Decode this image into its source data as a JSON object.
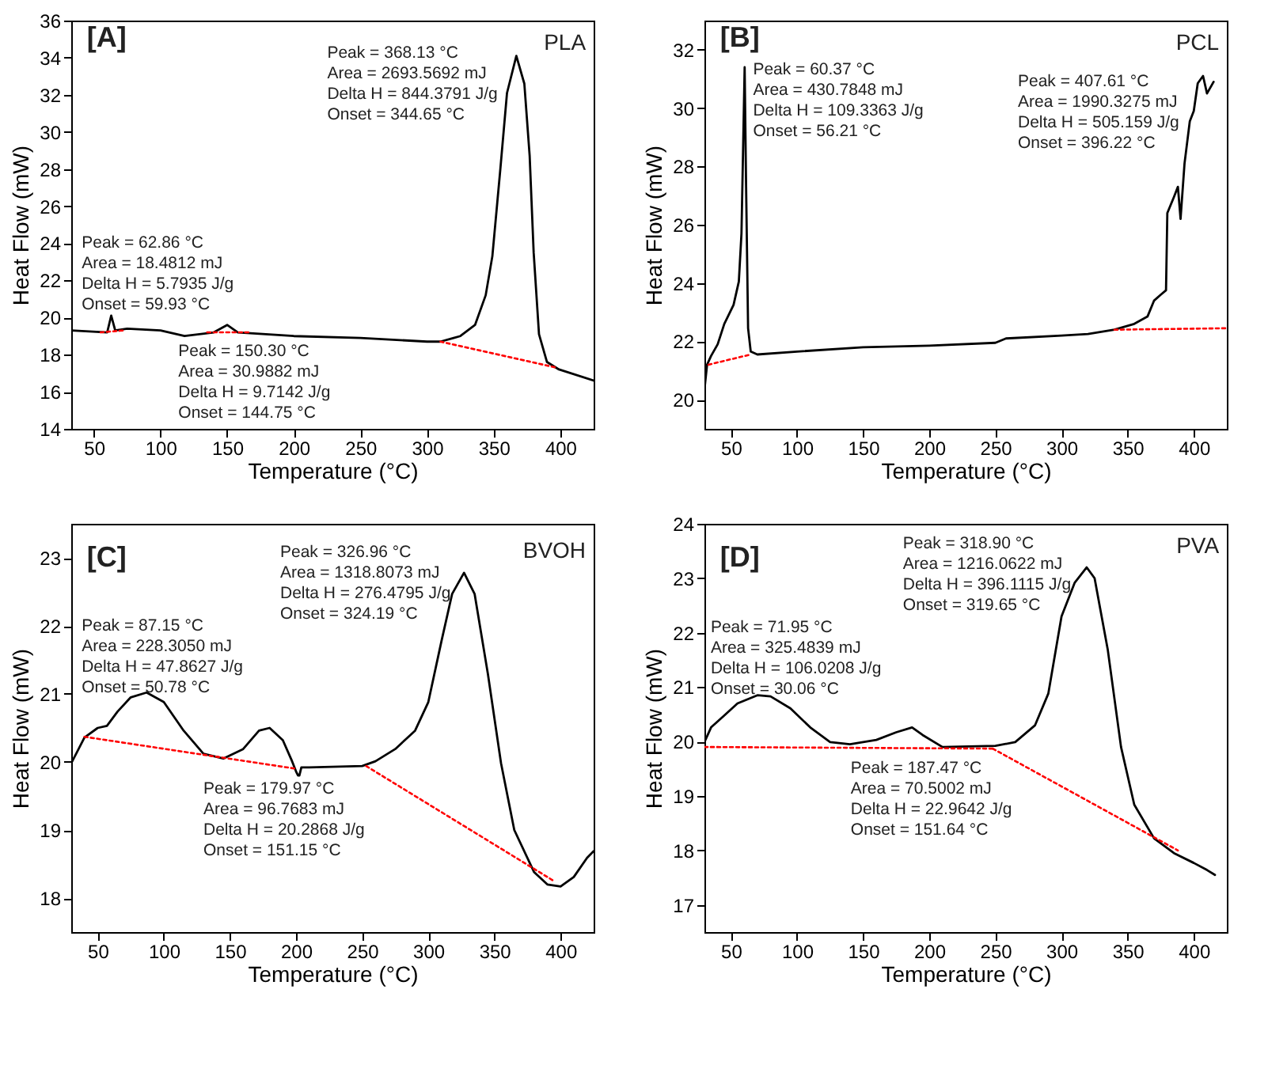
{
  "chart_data": [
    {
      "type": "line",
      "xlabel": "Temperature (°C)",
      "ylabel": "Heat Flow (mW)",
      "xlim": [
        33,
        425
      ],
      "xticks": [
        50,
        100,
        150,
        200,
        250,
        300,
        350,
        400
      ],
      "ylim": [
        14,
        36
      ],
      "yticks": [
        14,
        16,
        18,
        20,
        22,
        24,
        26,
        28,
        30,
        32,
        34,
        36
      ],
      "grid": false,
      "annotations": [
        "[A]",
        "PLA",
        "Peak = 62.86 °C\nArea = 18.4812 mJ\nDelta H = 5.7935 J/g\nOnset = 59.93 °C",
        "Peak = 150.30 °C\nArea = 30.9882 mJ\nDelta H = 9.7142 J/g\nOnset = 144.75 °C",
        "Peak = 368.13 °C\nArea = 2693.5692 mJ\nDelta H = 844.3791 J/g\nOnset = 344.65 °C"
      ],
      "series": [
        {
          "color": "#000000",
          "line_style": "solid",
          "x": [
            33,
            60,
            63,
            66,
            75,
            100,
            118,
            140,
            150,
            158,
            200,
            250,
            300,
            310,
            320,
            325,
            336,
            344,
            349,
            355,
            360,
            367,
            373,
            377,
            380,
            384,
            390,
            399,
            425
          ],
          "values": [
            19.3,
            19.2,
            20.1,
            19.3,
            19.4,
            19.3,
            19.0,
            19.2,
            19.6,
            19.2,
            19.0,
            18.9,
            18.7,
            18.7,
            18.9,
            19.0,
            19.6,
            21.2,
            23.3,
            28.0,
            32.1,
            34.1,
            32.6,
            28.7,
            23.5,
            19.1,
            17.6,
            17.2,
            16.6
          ]
        },
        {
          "color": "#ff0000",
          "line_style": "dotted",
          "x": [
            55,
            72
          ],
          "values": [
            19.2,
            19.3
          ]
        },
        {
          "color": "#ff0000",
          "line_style": "dotted",
          "x": [
            135,
            167
          ],
          "values": [
            19.2,
            19.2
          ]
        },
        {
          "color": "#ff0000",
          "line_style": "dotted",
          "x": [
            310,
            397
          ],
          "values": [
            18.7,
            17.3
          ]
        }
      ]
    },
    {
      "type": "line",
      "xlabel": "Temperature (°C)",
      "ylabel": "Heat Flow (mW)",
      "xlim": [
        30,
        425
      ],
      "xticks": [
        50,
        100,
        150,
        200,
        250,
        300,
        350,
        400
      ],
      "ylim": [
        19,
        33
      ],
      "yticks": [
        20,
        22,
        24,
        26,
        28,
        30,
        32
      ],
      "grid": false,
      "annotations": [
        "[B]",
        "PCL",
        "Peak =  60.37 °C\nArea = 430.7848 mJ\nDelta H = 109.3363 J/g\nOnset = 56.21 °C",
        "Peak = 407.61 °C\nArea = 1990.3275 mJ\nDelta H = 505.159 J/g\nOnset = 396.22 °C"
      ],
      "series": [
        {
          "color": "#000000",
          "line_style": "solid",
          "x": [
            30,
            32,
            35,
            40,
            45,
            52,
            56,
            58,
            60.4,
            61.5,
            63,
            65,
            70,
            100,
            150,
            200,
            250,
            258,
            300,
            320,
            340,
            355,
            365,
            370,
            375,
            379,
            380,
            385,
            388,
            390,
            393,
            397,
            400,
            403,
            407,
            410,
            415
          ],
          "values": [
            20.35,
            21.2,
            21.5,
            21.9,
            22.6,
            23.25,
            24.05,
            25.7,
            31.4,
            27.3,
            22.45,
            21.65,
            21.55,
            21.65,
            21.8,
            21.85,
            21.95,
            22.1,
            22.2,
            22.25,
            22.4,
            22.6,
            22.85,
            23.4,
            23.6,
            23.75,
            26.4,
            26.95,
            27.3,
            26.2,
            28.1,
            29.55,
            29.9,
            30.85,
            31.1,
            30.5,
            30.9
          ]
        },
        {
          "color": "#ff0000",
          "line_style": "dotted",
          "x": [
            33,
            65
          ],
          "values": [
            21.2,
            21.55
          ]
        },
        {
          "color": "#ff0000",
          "line_style": "dotted",
          "x": [
            340,
            425
          ],
          "values": [
            22.4,
            22.45
          ]
        }
      ]
    },
    {
      "type": "line",
      "xlabel": "Temperature (°C)",
      "ylabel": "Heat Flow (mW)",
      "xlim": [
        30,
        425
      ],
      "xticks": [
        50,
        100,
        150,
        200,
        250,
        300,
        350,
        400
      ],
      "ylim": [
        17.5,
        23.5
      ],
      "yticks": [
        18,
        19,
        20,
        21,
        22,
        23
      ],
      "grid": false,
      "annotations": [
        "[C]",
        "BVOH",
        "Peak = 87.15 °C\nArea = 228.3050 mJ\nDelta H = 47.8627 J/g\nOnset = 50.78 °C",
        "Peak = 179.97 °C\nArea = 96.7683 mJ\nDelta H = 20.2868 J/g\nOnset = 151.15 °C",
        "Peak = 326.96 °C\nArea = 1318.8073 mJ\nDelta H = 276.4795 J/g\nOnset = 324.19 °C"
      ],
      "series": [
        {
          "color": "#000000",
          "line_style": "solid",
          "x": [
            30,
            40,
            50,
            57,
            65,
            75,
            87,
            100,
            115,
            130,
            145,
            160,
            172,
            180,
            190,
            197,
            200,
            201.5,
            202.5,
            204,
            210,
            250,
            260,
            275,
            290,
            300,
            310,
            318,
            327,
            335,
            345,
            355,
            365,
            380,
            390,
            400,
            410,
            420,
            425
          ],
          "values": [
            19.98,
            20.36,
            20.5,
            20.53,
            20.74,
            20.95,
            21.02,
            20.88,
            20.46,
            20.12,
            20.05,
            20.19,
            20.46,
            20.5,
            20.32,
            20.01,
            19.86,
            19.8,
            19.8,
            19.92,
            19.92,
            19.94,
            20.01,
            20.19,
            20.46,
            20.88,
            21.78,
            22.47,
            22.78,
            22.47,
            21.3,
            19.98,
            19.0,
            18.38,
            18.2,
            18.17,
            18.31,
            18.59,
            18.69
          ]
        },
        {
          "color": "#ff0000",
          "line_style": "dotted",
          "x": [
            40,
            200
          ],
          "values": [
            20.37,
            19.9
          ]
        },
        {
          "color": "#ff0000",
          "line_style": "dotted",
          "x": [
            253,
            395
          ],
          "values": [
            19.94,
            18.25
          ]
        }
      ]
    },
    {
      "type": "line",
      "xlabel": "Temperature (°C)",
      "ylabel": "Heat Flow (mW)",
      "xlim": [
        30,
        425
      ],
      "xticks": [
        50,
        100,
        150,
        200,
        250,
        300,
        350,
        400
      ],
      "ylim": [
        16.5,
        24
      ],
      "yticks": [
        17,
        18,
        19,
        20,
        21,
        22,
        23,
        24
      ],
      "grid": false,
      "annotations": [
        "[D]",
        "PVA",
        "Peak = 71.95 °C\nArea = 325.4839 mJ\nDelta H = 106.0208 J/g\nOnset = 30.06 °C",
        "Peak = 187.47 °C\nArea = 70.5002 mJ\nDelta H = 22.9642 J/g\nOnset = 151.64 °C",
        "Peak = 318.90 °C\nArea = 1216.0622 mJ\nDelta H = 396.1115 J/g\nOnset = 319.65 °C"
      ],
      "series": [
        {
          "color": "#000000",
          "line_style": "solid",
          "x": [
            30,
            35,
            45,
            55,
            70,
            80,
            95,
            110,
            125,
            140,
            160,
            175,
            187,
            195,
            210,
            250,
            265,
            280,
            290,
            300,
            310,
            319,
            325,
            335,
            345,
            355,
            370,
            385,
            400,
            410,
            416
          ],
          "values": [
            19.99,
            20.26,
            20.48,
            20.7,
            20.85,
            20.83,
            20.61,
            20.26,
            19.99,
            19.95,
            20.03,
            20.17,
            20.26,
            20.12,
            19.9,
            19.92,
            19.99,
            20.3,
            20.88,
            22.3,
            22.92,
            23.2,
            23.0,
            21.68,
            19.9,
            18.84,
            18.22,
            17.95,
            17.77,
            17.64,
            17.55
          ]
        },
        {
          "color": "#ff0000",
          "line_style": "dotted",
          "x": [
            30,
            250
          ],
          "values": [
            19.9,
            19.87
          ]
        },
        {
          "color": "#ff0000",
          "line_style": "dotted",
          "x": [
            248,
            388
          ],
          "values": [
            19.87,
            18.0
          ]
        }
      ]
    }
  ]
}
